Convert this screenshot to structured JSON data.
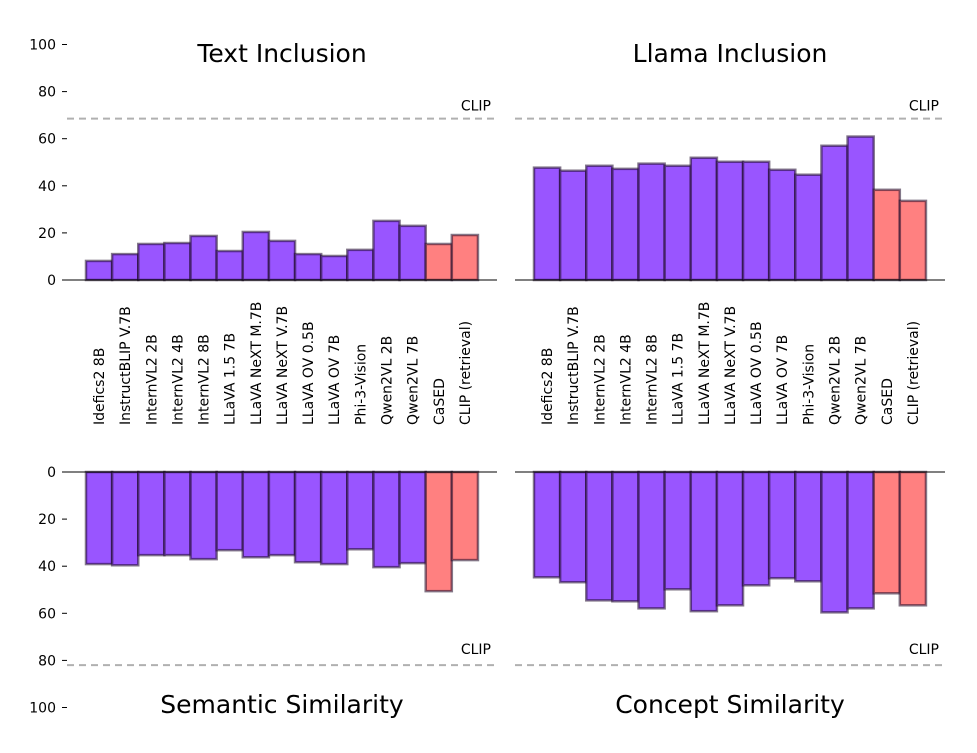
{
  "chart_data": {
    "type": "bar",
    "categories": [
      "Idefics2 8B",
      "InstructBLIP V.7B",
      "InternVL2 2B",
      "InternVL2 4B",
      "InternVL2 8B",
      "LLaVA 1.5 7B",
      "LLaVA NeXT M.7B",
      "LLaVA NeXT V.7B",
      "LLaVA OV 0.5B",
      "LLaVA OV 7B",
      "Phi-3-Vision",
      "Qwen2VL 2B",
      "Qwen2VL 7B",
      "CaSED",
      "CLIP (retrieval)"
    ],
    "colors": {
      "vlm": "#9955ff",
      "baseline": "#ff8080",
      "reference_line": "#b0b0b0"
    },
    "bar_color_groups": [
      "vlm",
      "vlm",
      "vlm",
      "vlm",
      "vlm",
      "vlm",
      "vlm",
      "vlm",
      "vlm",
      "vlm",
      "vlm",
      "vlm",
      "vlm",
      "baseline",
      "baseline"
    ],
    "ylim": [
      0,
      100
    ],
    "yticks": [
      "0",
      "20",
      "40",
      "60",
      "80",
      "100"
    ],
    "panels": [
      {
        "title": "Text Inclusion",
        "orientation": "up",
        "reference": {
          "label": "CLIP",
          "value": 68.5
        },
        "values": [
          8.1,
          11,
          15.3,
          15.7,
          18.7,
          12.3,
          20.4,
          16.6,
          11,
          10.2,
          12.8,
          25.1,
          23,
          15.3,
          19.1
        ]
      },
      {
        "title": "Llama Inclusion",
        "orientation": "up",
        "reference": {
          "label": "CLIP",
          "value": 68.5
        },
        "values": [
          47.7,
          46.4,
          48.5,
          47.2,
          49.4,
          48.5,
          51.9,
          50.2,
          50.2,
          46.8,
          44.7,
          57,
          60.9,
          38.3,
          33.6
        ]
      },
      {
        "title": "Semantic Similarity",
        "orientation": "down",
        "reference": {
          "label": "CLIP",
          "value": 82
        },
        "values": [
          39.1,
          39.6,
          35.3,
          35.3,
          37,
          33.2,
          36.2,
          35.3,
          38.3,
          39.1,
          32.8,
          40.4,
          38.7,
          50.6,
          37.4
        ]
      },
      {
        "title": "Concept Similarity",
        "orientation": "down",
        "reference": {
          "label": "CLIP",
          "value": 82
        },
        "values": [
          44.7,
          46.8,
          54.5,
          54.9,
          57.9,
          49.8,
          59.1,
          56.6,
          48.1,
          45.1,
          46.4,
          59.6,
          57.9,
          51.5,
          56.6
        ]
      }
    ]
  }
}
